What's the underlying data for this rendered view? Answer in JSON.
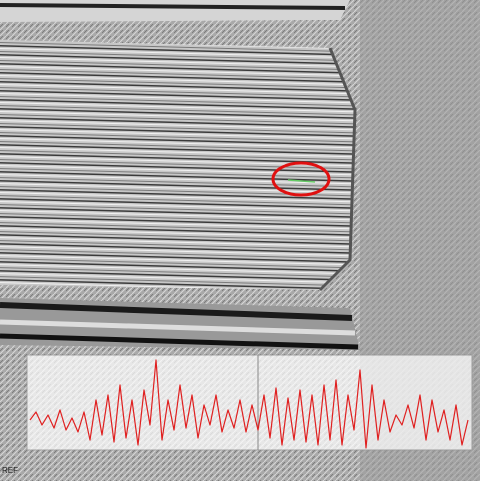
{
  "overlay": {
    "label": "REF"
  }
}
